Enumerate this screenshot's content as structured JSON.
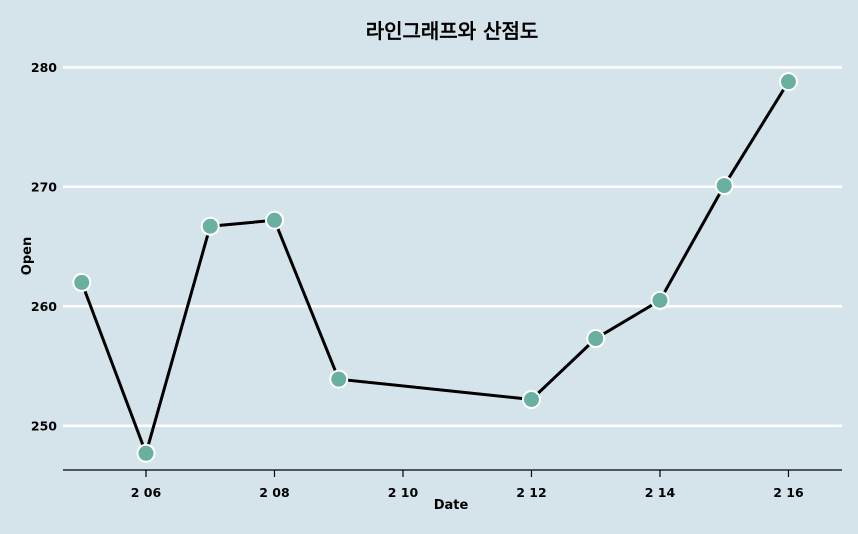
{
  "chart_data": {
    "type": "line",
    "title": "라인그래프와 산점도",
    "xlabel": "Date",
    "ylabel": "Open",
    "x_ticks": [
      "2 06",
      "2 08",
      "2 10",
      "2 12",
      "2 14",
      "2 16"
    ],
    "y_ticks": [
      250,
      260,
      270,
      280
    ],
    "xlim": [
      "2-04-17",
      "2-16-20"
    ],
    "ylim": [
      246.3,
      281.7
    ],
    "x": [
      "2-05",
      "2-06",
      "2-07",
      "2-08",
      "2-09",
      "2-12",
      "2-13",
      "2-14",
      "2-15",
      "2-16"
    ],
    "series": [
      {
        "values": [
          262.0,
          247.7,
          266.7,
          267.2,
          253.9,
          252.2,
          257.3,
          260.5,
          270.1,
          278.8
        ]
      }
    ],
    "grid": "horizontal",
    "colors": {
      "background": "#d5e4eb",
      "line": "#000000",
      "point_fill": "#6ab0a0",
      "point_stroke": "#ffffff",
      "gridline": "#ffffff"
    }
  }
}
